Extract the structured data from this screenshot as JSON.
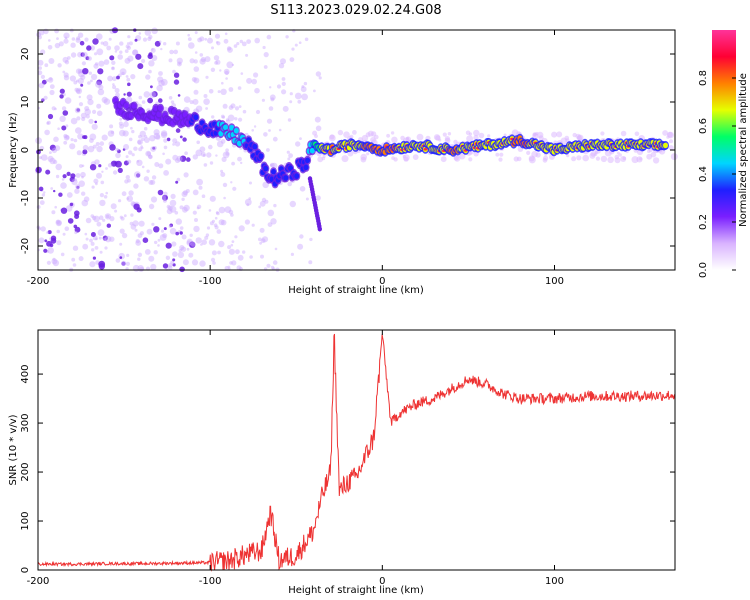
{
  "title": "S113.2023.029.02.24.G08",
  "chart_data": [
    {
      "type": "heatmap",
      "xlabel": "Height of straight line (km)",
      "ylabel": "Frequency (Hz)",
      "xlim": [
        -200,
        170
      ],
      "ylim": [
        -25,
        25
      ],
      "xticks": [
        -200,
        -100,
        0,
        100
      ],
      "yticks": [
        -20,
        -10,
        0,
        10,
        20
      ],
      "colorbar": {
        "label": "Normalized spectral amplitude",
        "range": [
          0,
          1
        ],
        "ticks": [
          "0.0",
          "0.2",
          "0.4",
          "0.6",
          "0.8"
        ],
        "colors": [
          "#ffffff",
          "#d9b3ff",
          "#7a1fff",
          "#1f1fff",
          "#00d5ff",
          "#00ff66",
          "#e6ff00",
          "#ff8000",
          "#ff0033",
          "#ff3399"
        ]
      },
      "ridge": {
        "x": [
          -155,
          -140,
          -125,
          -110,
          -95,
          -85,
          -75,
          -65,
          -55,
          -45,
          -40,
          -30,
          -20,
          -10,
          0,
          20,
          40,
          60,
          80,
          100,
          120,
          140,
          165
        ],
        "y": [
          9,
          8,
          7,
          6,
          4,
          3,
          0,
          -6,
          -5,
          -3,
          1,
          0,
          1,
          1,
          0,
          1,
          0,
          1,
          2,
          0,
          1,
          1,
          1
        ],
        "amplitude": [
          0.15,
          0.2,
          0.25,
          0.3,
          0.45,
          0.5,
          0.4,
          0.35,
          0.3,
          0.3,
          0.6,
          0.9,
          0.8,
          0.9,
          0.95,
          0.8,
          0.9,
          0.85,
          0.9,
          0.85,
          0.8,
          0.8,
          0.8
        ]
      }
    },
    {
      "type": "line",
      "xlabel": "Height of straight line (km)",
      "ylabel": "SNR (10 * v/v)",
      "xlim": [
        -200,
        170
      ],
      "ylim": [
        0,
        490
      ],
      "xticks": [
        -200,
        -100,
        0,
        100
      ],
      "yticks": [
        0,
        100,
        200,
        300,
        400
      ],
      "color": "#ee3333",
      "series": [
        {
          "x": [
            -200,
            -180,
            -160,
            -140,
            -120,
            -100,
            -90,
            -80,
            -70,
            -65,
            -60,
            -50,
            -40,
            -35,
            -30,
            -28,
            -25,
            -20,
            -15,
            -10,
            -5,
            0,
            5,
            10,
            20,
            30,
            40,
            50,
            60,
            70,
            80,
            100,
            120,
            140,
            170
          ],
          "y": [
            12,
            12,
            13,
            13,
            14,
            15,
            18,
            30,
            40,
            120,
            20,
            30,
            80,
            150,
            200,
            480,
            160,
            180,
            190,
            230,
            270,
            480,
            300,
            320,
            340,
            350,
            370,
            390,
            380,
            360,
            350,
            350,
            355,
            355,
            357
          ]
        }
      ]
    }
  ]
}
